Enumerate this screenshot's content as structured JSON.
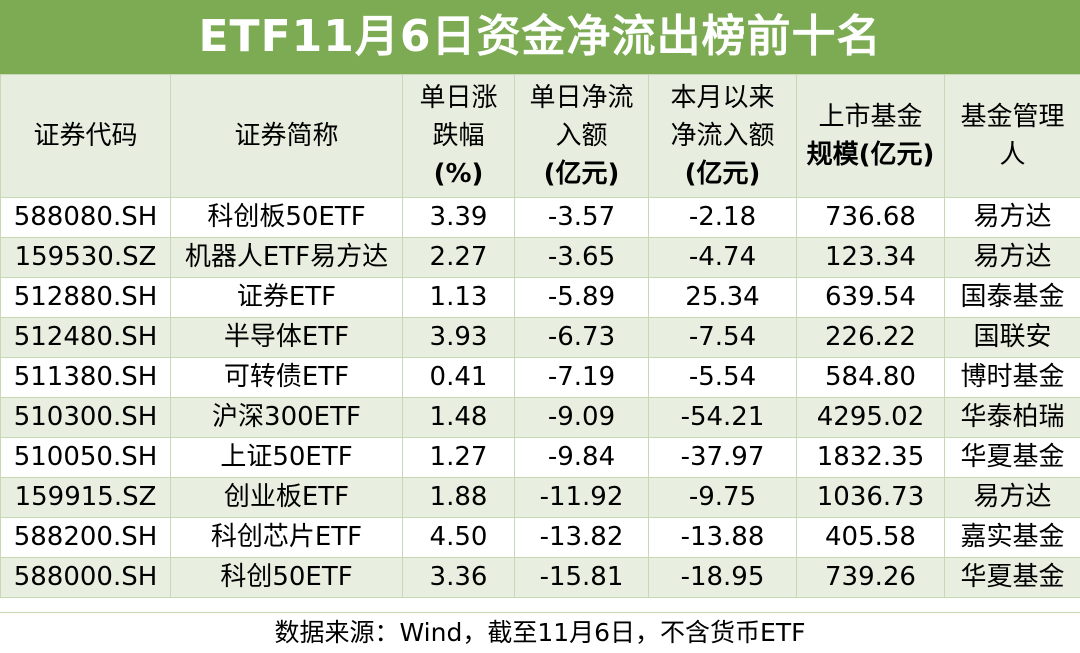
{
  "title": "ETF11月6日资金净流出榜前十名",
  "headers": [
    [
      "证券代码"
    ],
    [
      "证券简称"
    ],
    [
      "单日涨",
      "跌幅",
      "(%)"
    ],
    [
      "单日净流",
      "入额",
      "(亿元)"
    ],
    [
      "本月以来",
      "净流入额",
      "(亿元)"
    ],
    [
      "上市基金",
      "规模(亿元)"
    ],
    [
      "基金管理",
      "人"
    ]
  ],
  "rows": [
    [
      "588080.SH",
      "科创板50ETF",
      "3.39",
      "-3.57",
      "-2.18",
      "736.68",
      "易方达"
    ],
    [
      "159530.SZ",
      "机器人ETF易方达",
      "2.27",
      "-3.65",
      "-4.74",
      "123.34",
      "易方达"
    ],
    [
      "512880.SH",
      "证券ETF",
      "1.13",
      "-5.89",
      "25.34",
      "639.54",
      "国泰基金"
    ],
    [
      "512480.SH",
      "半导体ETF",
      "3.93",
      "-6.73",
      "-7.54",
      "226.22",
      "国联安"
    ],
    [
      "511380.SH",
      "可转债ETF",
      "0.41",
      "-7.19",
      "-5.54",
      "584.80",
      "博时基金"
    ],
    [
      "510300.SH",
      "沪深300ETF",
      "1.48",
      "-9.09",
      "-54.21",
      "4295.02",
      "华泰柏瑞"
    ],
    [
      "510050.SH",
      "上证50ETF",
      "1.27",
      "-9.84",
      "-37.97",
      "1832.35",
      "华夏基金"
    ],
    [
      "159915.SZ",
      "创业板ETF",
      "1.88",
      "-11.92",
      "-9.75",
      "1036.73",
      "易方达"
    ],
    [
      "588200.SH",
      "科创芯片ETF",
      "4.50",
      "-13.82",
      "-13.88",
      "405.58",
      "嘉实基金"
    ],
    [
      "588000.SH",
      "科创50ETF",
      "3.36",
      "-15.81",
      "-18.95",
      "739.26",
      "华夏基金"
    ]
  ],
  "footer": "数据来源：Wind，截至11月6日，不含货币ETF",
  "colors": {
    "title_bg": "#7cab53",
    "header_bg": "#e7eddf",
    "stripe_bg": "#e8efe0"
  }
}
